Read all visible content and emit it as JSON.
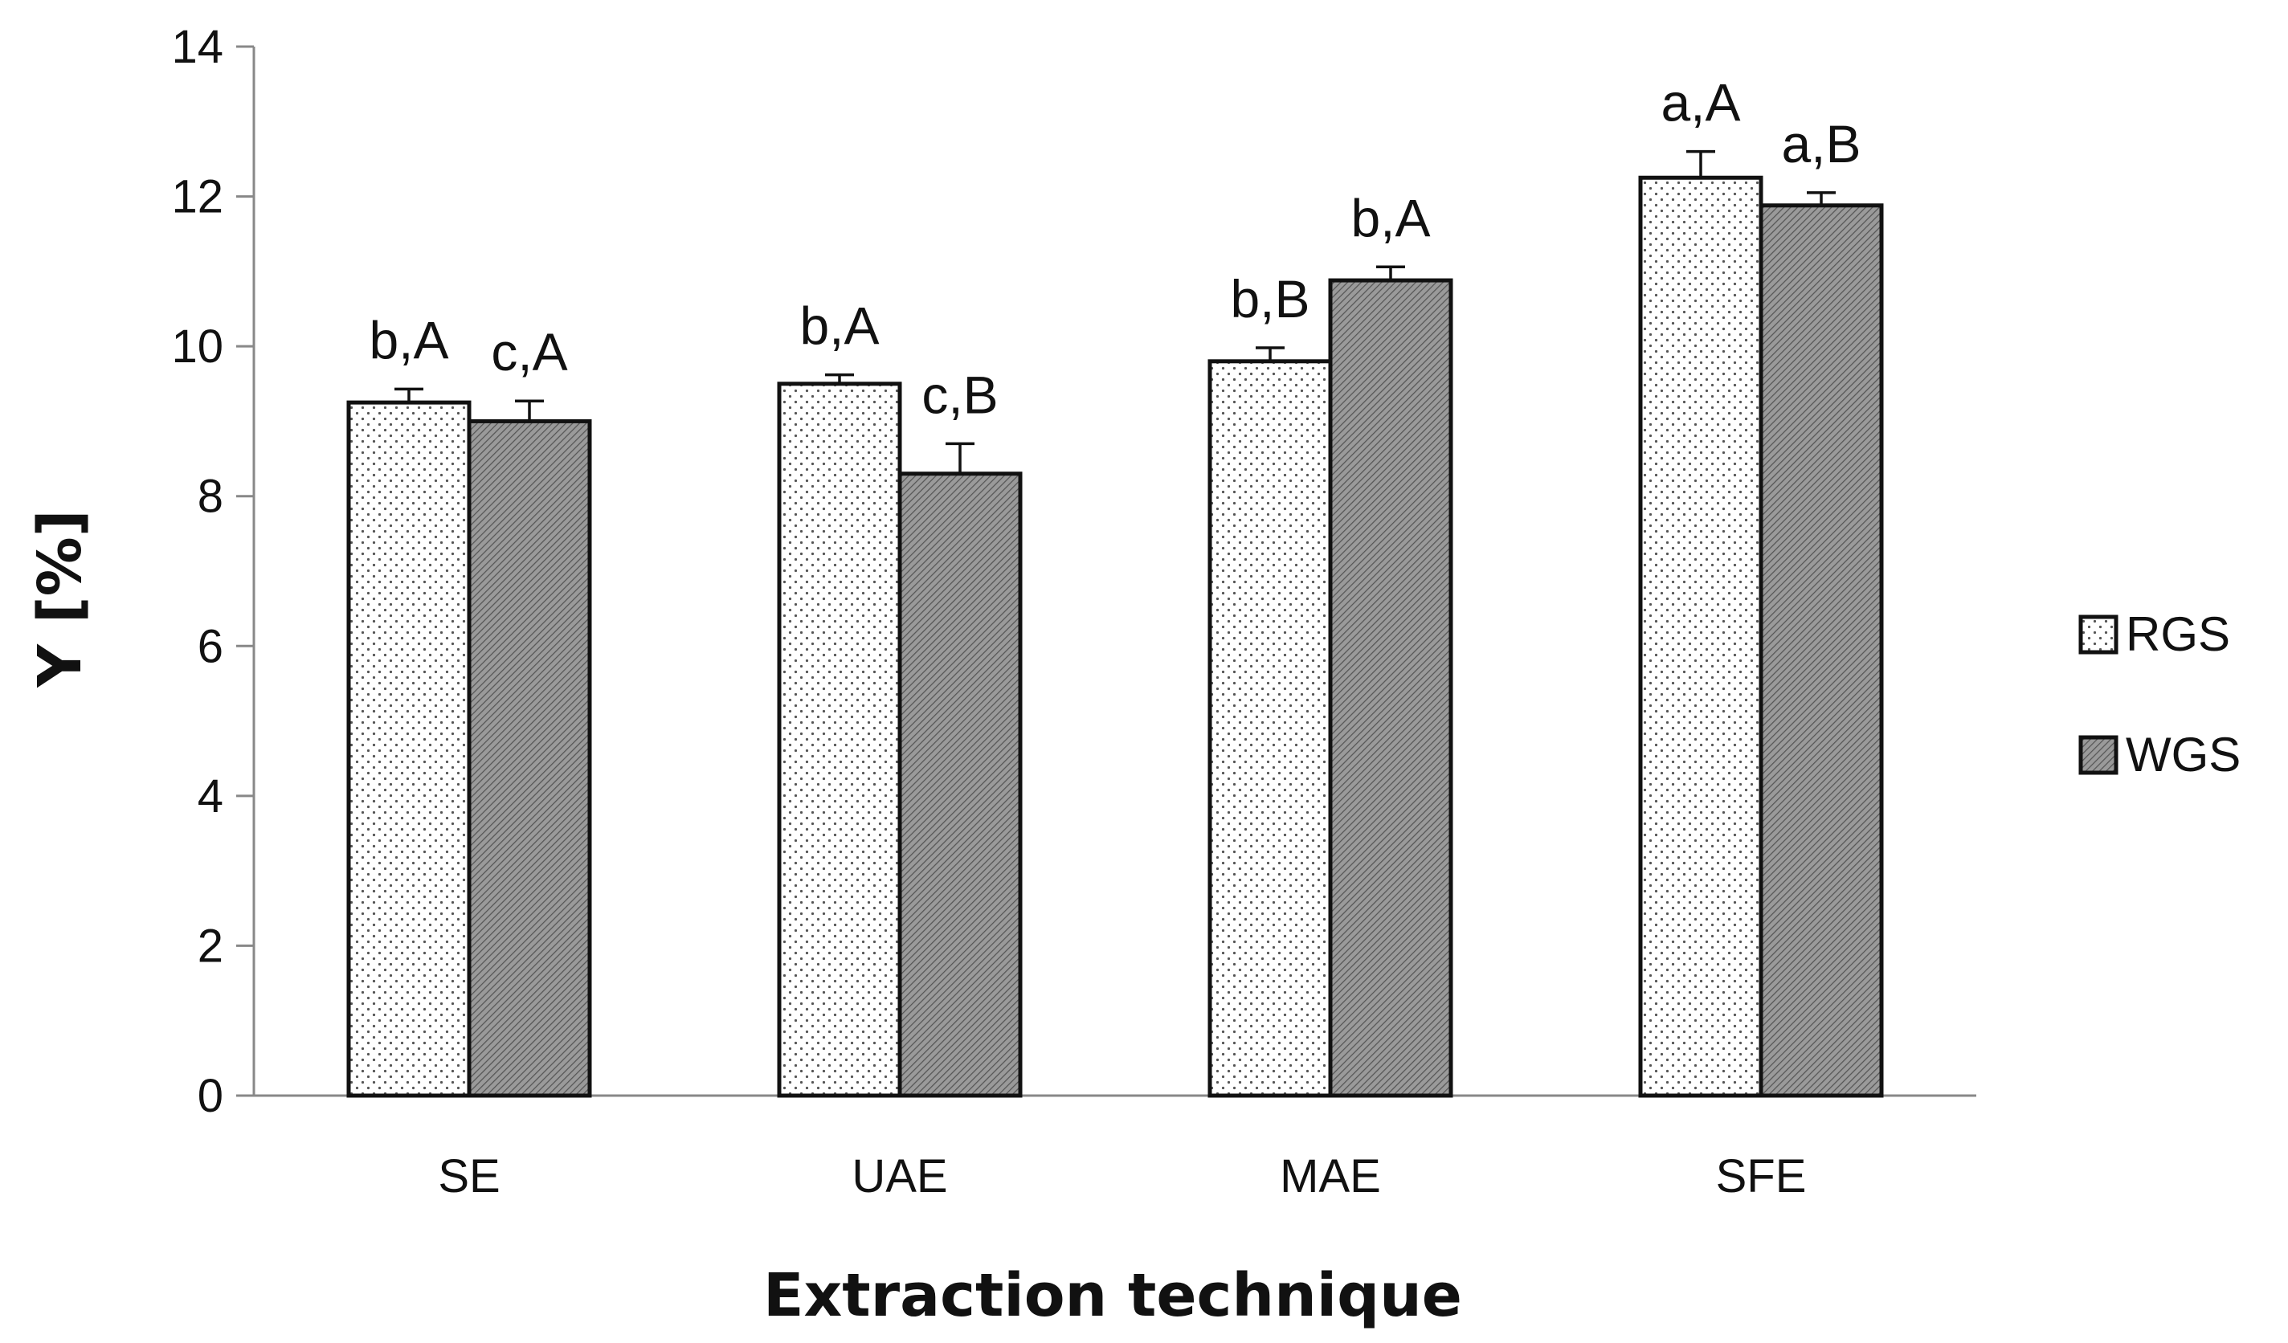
{
  "chart_data": {
    "type": "bar",
    "title": "",
    "xlabel": "Extraction technique",
    "ylabel": "Y [%]",
    "ylim": [
      0,
      14
    ],
    "yticks": [
      0,
      2,
      4,
      6,
      8,
      10,
      12,
      14
    ],
    "grid": false,
    "legend_position": "right",
    "categories": [
      "SE",
      "UAE",
      "MAE",
      "SFE"
    ],
    "series": [
      {
        "name": "RGS",
        "pattern": "dotted",
        "values": [
          9.25,
          9.5,
          9.8,
          12.25
        ],
        "errors": [
          0.18,
          0.12,
          0.18,
          0.35
        ],
        "labels": [
          "b,A",
          "b,A",
          "b,B",
          "a,A"
        ]
      },
      {
        "name": "WGS",
        "pattern": "hatched-gray",
        "values": [
          9.0,
          8.3,
          10.88,
          11.88
        ],
        "errors": [
          0.27,
          0.4,
          0.18,
          0.17
        ],
        "labels": [
          "c,A",
          "c,B",
          "b,A",
          "a,B"
        ]
      }
    ],
    "colors": {
      "bar_border": "#111111",
      "rgs_fill": "#ffffff",
      "rgs_dots": "#555555",
      "wgs_fill": "#8a8a8a",
      "axis": "#888888"
    }
  }
}
